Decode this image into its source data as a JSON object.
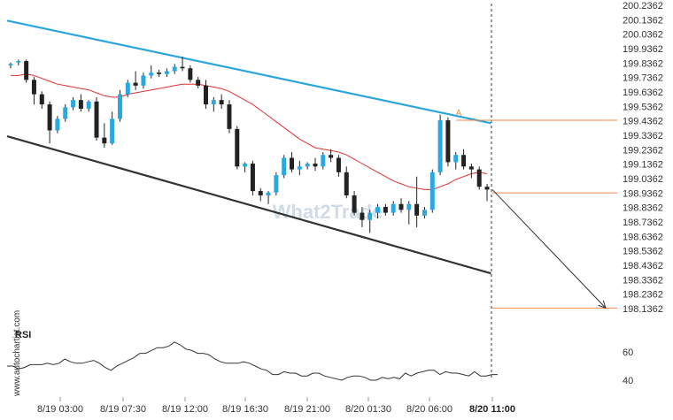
{
  "watermark": "What2Trade",
  "side_text": "www.autochartist.com",
  "rsi_label": "RSI",
  "pattern_marker": "A",
  "colors": {
    "bull": "#29a9e1",
    "bear": "#222222",
    "ma": "#e03030",
    "upper_channel": "#2aa6dc",
    "lower_channel": "#333333",
    "level": "#f08a4b",
    "rsi": "#333333",
    "axis_text": "#333333"
  },
  "chart_data": [
    {
      "type": "candlestick",
      "y_ticks": [
        "200.2362",
        "200.1362",
        "200.0362",
        "199.9362",
        "199.8362",
        "199.7362",
        "199.6362",
        "199.5362",
        "199.4362",
        "199.3362",
        "199.2362",
        "199.1362",
        "199.0362",
        "198.9362",
        "198.8362",
        "198.7362",
        "198.6362",
        "198.5362",
        "198.4362",
        "198.3362",
        "198.2362",
        "198.1362"
      ],
      "x_ticks": [
        "8/19 03:00",
        "8/19 07:30",
        "8/19 12:00",
        "8/19 16:30",
        "8/19 21:00",
        "8/20 01:30",
        "8/20 06:00",
        "8/20 11:00"
      ],
      "x_ticks_bold_index": 7,
      "ylim": [
        198.08,
        200.26
      ],
      "candle_interval_minutes": 30,
      "candles": [
        {
          "o": 199.82,
          "h": 199.84,
          "l": 199.8,
          "c": 199.83
        },
        {
          "o": 199.84,
          "h": 199.86,
          "l": 199.82,
          "c": 199.85
        },
        {
          "o": 199.85,
          "h": 199.86,
          "l": 199.7,
          "c": 199.72
        },
        {
          "o": 199.72,
          "h": 199.74,
          "l": 199.55,
          "c": 199.62
        },
        {
          "o": 199.62,
          "h": 199.64,
          "l": 199.52,
          "c": 199.55
        },
        {
          "o": 199.55,
          "h": 199.57,
          "l": 199.28,
          "c": 199.37
        },
        {
          "o": 199.37,
          "h": 199.47,
          "l": 199.35,
          "c": 199.45
        },
        {
          "o": 199.45,
          "h": 199.55,
          "l": 199.43,
          "c": 199.53
        },
        {
          "o": 199.53,
          "h": 199.6,
          "l": 199.51,
          "c": 199.58
        },
        {
          "o": 199.58,
          "h": 199.62,
          "l": 199.5,
          "c": 199.52
        },
        {
          "o": 199.52,
          "h": 199.58,
          "l": 199.5,
          "c": 199.57
        },
        {
          "o": 199.57,
          "h": 199.6,
          "l": 199.3,
          "c": 199.32
        },
        {
          "o": 199.32,
          "h": 199.42,
          "l": 199.25,
          "c": 199.28
        },
        {
          "o": 199.28,
          "h": 199.5,
          "l": 199.27,
          "c": 199.45
        },
        {
          "o": 199.45,
          "h": 199.65,
          "l": 199.43,
          "c": 199.62
        },
        {
          "o": 199.62,
          "h": 199.72,
          "l": 199.6,
          "c": 199.7
        },
        {
          "o": 199.7,
          "h": 199.78,
          "l": 199.65,
          "c": 199.68
        },
        {
          "o": 199.68,
          "h": 199.77,
          "l": 199.66,
          "c": 199.75
        },
        {
          "o": 199.75,
          "h": 199.82,
          "l": 199.73,
          "c": 199.77
        },
        {
          "o": 199.77,
          "h": 199.79,
          "l": 199.74,
          "c": 199.76
        },
        {
          "o": 199.76,
          "h": 199.8,
          "l": 199.74,
          "c": 199.78
        },
        {
          "o": 199.78,
          "h": 199.83,
          "l": 199.76,
          "c": 199.81
        },
        {
          "o": 199.81,
          "h": 199.88,
          "l": 199.78,
          "c": 199.8
        },
        {
          "o": 199.8,
          "h": 199.82,
          "l": 199.7,
          "c": 199.72
        },
        {
          "o": 199.72,
          "h": 199.74,
          "l": 199.66,
          "c": 199.68
        },
        {
          "o": 199.68,
          "h": 199.72,
          "l": 199.52,
          "c": 199.55
        },
        {
          "o": 199.55,
          "h": 199.6,
          "l": 199.5,
          "c": 199.58
        },
        {
          "o": 199.58,
          "h": 199.62,
          "l": 199.52,
          "c": 199.55
        },
        {
          "o": 199.55,
          "h": 199.58,
          "l": 199.35,
          "c": 199.38
        },
        {
          "o": 199.38,
          "h": 199.4,
          "l": 199.1,
          "c": 199.12
        },
        {
          "o": 199.12,
          "h": 199.15,
          "l": 199.08,
          "c": 199.14
        },
        {
          "o": 199.14,
          "h": 199.16,
          "l": 198.92,
          "c": 198.95
        },
        {
          "o": 198.95,
          "h": 198.97,
          "l": 198.88,
          "c": 198.92
        },
        {
          "o": 198.92,
          "h": 198.95,
          "l": 198.86,
          "c": 198.94
        },
        {
          "o": 198.94,
          "h": 199.08,
          "l": 198.92,
          "c": 199.06
        },
        {
          "o": 199.06,
          "h": 199.2,
          "l": 199.04,
          "c": 199.18
        },
        {
          "o": 199.18,
          "h": 199.22,
          "l": 199.08,
          "c": 199.1
        },
        {
          "o": 199.1,
          "h": 199.16,
          "l": 199.06,
          "c": 199.12
        },
        {
          "o": 199.12,
          "h": 199.15,
          "l": 199.1,
          "c": 199.14
        },
        {
          "o": 199.14,
          "h": 199.18,
          "l": 199.09,
          "c": 199.12
        },
        {
          "o": 199.12,
          "h": 199.22,
          "l": 199.1,
          "c": 199.2
        },
        {
          "o": 199.2,
          "h": 199.24,
          "l": 199.15,
          "c": 199.18
        },
        {
          "o": 199.18,
          "h": 199.2,
          "l": 199.05,
          "c": 199.08
        },
        {
          "o": 199.08,
          "h": 199.12,
          "l": 198.9,
          "c": 198.92
        },
        {
          "o": 198.92,
          "h": 198.95,
          "l": 198.78,
          "c": 198.8
        },
        {
          "o": 198.8,
          "h": 198.84,
          "l": 198.7,
          "c": 198.75
        },
        {
          "o": 198.75,
          "h": 198.82,
          "l": 198.66,
          "c": 198.8
        },
        {
          "o": 198.8,
          "h": 198.86,
          "l": 198.76,
          "c": 198.84
        },
        {
          "o": 198.84,
          "h": 198.86,
          "l": 198.78,
          "c": 198.8
        },
        {
          "o": 198.8,
          "h": 198.88,
          "l": 198.78,
          "c": 198.86
        },
        {
          "o": 198.86,
          "h": 198.9,
          "l": 198.8,
          "c": 198.82
        },
        {
          "o": 198.82,
          "h": 198.88,
          "l": 198.72,
          "c": 198.86
        },
        {
          "o": 198.86,
          "h": 199.05,
          "l": 198.7,
          "c": 198.78
        },
        {
          "o": 198.78,
          "h": 198.84,
          "l": 198.76,
          "c": 198.82
        },
        {
          "o": 198.82,
          "h": 199.1,
          "l": 198.8,
          "c": 199.08
        },
        {
          "o": 199.08,
          "h": 199.48,
          "l": 199.06,
          "c": 199.44
        },
        {
          "o": 199.44,
          "h": 199.46,
          "l": 199.12,
          "c": 199.15
        },
        {
          "o": 199.15,
          "h": 199.22,
          "l": 199.1,
          "c": 199.2
        },
        {
          "o": 199.2,
          "h": 199.24,
          "l": 199.1,
          "c": 199.12
        },
        {
          "o": 199.12,
          "h": 199.14,
          "l": 199.04,
          "c": 199.1
        },
        {
          "o": 199.1,
          "h": 199.12,
          "l": 198.96,
          "c": 198.98
        },
        {
          "o": 198.98,
          "h": 199.0,
          "l": 198.88,
          "c": 198.96
        }
      ],
      "moving_average": [
        199.75,
        199.75,
        199.76,
        199.75,
        199.73,
        199.71,
        199.69,
        199.68,
        199.67,
        199.66,
        199.65,
        199.63,
        199.61,
        199.6,
        199.6,
        199.62,
        199.63,
        199.64,
        199.65,
        199.66,
        199.67,
        199.68,
        199.69,
        199.69,
        199.69,
        199.68,
        199.67,
        199.66,
        199.64,
        199.61,
        199.58,
        199.55,
        199.51,
        199.47,
        199.43,
        199.39,
        199.35,
        199.31,
        199.28,
        199.25,
        199.24,
        199.23,
        199.22,
        199.2,
        199.17,
        199.14,
        199.11,
        199.08,
        199.05,
        199.02,
        199.0,
        198.98,
        198.97,
        198.96,
        198.96,
        198.98,
        199.0,
        199.03,
        199.05,
        199.07,
        199.08,
        199.07
      ],
      "upper_channel": {
        "start": [
          0,
          200.13
        ],
        "end": [
          61.5,
          199.42
        ]
      },
      "lower_channel": {
        "start": [
          0,
          199.33
        ],
        "end": [
          61.5,
          198.38
        ]
      },
      "resistance_level": 199.44,
      "current_level": 198.95,
      "target_level": 198.14,
      "projection": {
        "from": [
          61.5,
          198.96
        ],
        "to": [
          74.5,
          198.14
        ]
      }
    },
    {
      "type": "line",
      "title": "RSI",
      "y_ticks": [
        60,
        40
      ],
      "ylim": [
        35,
        72
      ],
      "values": [
        50,
        50,
        48,
        49,
        51,
        51,
        51,
        52,
        51,
        52,
        55,
        53,
        52,
        52,
        53,
        54,
        52,
        49,
        47,
        50,
        52,
        54,
        56,
        59,
        59,
        61,
        63,
        63,
        64,
        67,
        65,
        62,
        61,
        59,
        59,
        58,
        55,
        53,
        52,
        52,
        52,
        53,
        52,
        50,
        48,
        47,
        44,
        44,
        46,
        45,
        45,
        43,
        43,
        45,
        45,
        43,
        42,
        41,
        40,
        42,
        43,
        43,
        42,
        40,
        40,
        42,
        41,
        42,
        41,
        45,
        43,
        45,
        46,
        47,
        47,
        44,
        46,
        45,
        45,
        44,
        43,
        46,
        43,
        43,
        44,
        44
      ]
    }
  ]
}
